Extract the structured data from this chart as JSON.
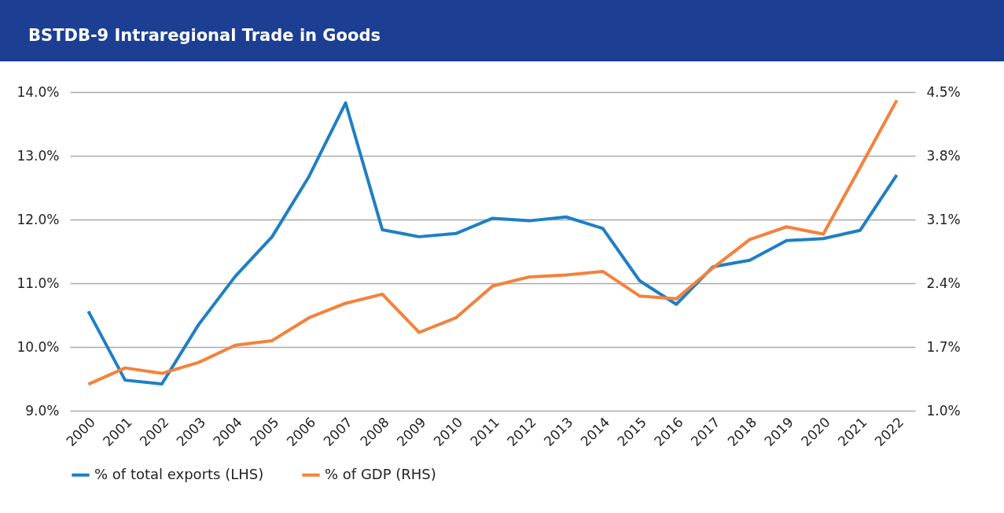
{
  "chart_data": {
    "type": "line",
    "title": "BSTDB-9 Intraregional Trade in Goods",
    "categories": [
      "2000",
      "2001",
      "2002",
      "2003",
      "2004",
      "2005",
      "2006",
      "2007",
      "2008",
      "2009",
      "2010",
      "2011",
      "2012",
      "2013",
      "2014",
      "2015",
      "2016",
      "2017",
      "2018",
      "2019",
      "2020",
      "2021",
      "2022"
    ],
    "series": [
      {
        "name": "% of total exports (LHS)",
        "color": "#1f7fc4",
        "values": [
          10.56,
          9.48,
          9.42,
          10.35,
          11.11,
          11.73,
          12.67,
          13.83,
          11.84,
          11.73,
          11.78,
          12.02,
          11.98,
          12.04,
          11.86,
          11.04,
          10.67,
          11.26,
          11.36,
          11.67,
          11.7,
          11.83,
          12.7
        ]
      },
      {
        "name": "% of GDP (RHS)",
        "color": "#f5813b",
        "axis": "y2",
        "values": [
          1.29,
          1.47,
          1.41,
          1.53,
          1.72,
          1.77,
          2.02,
          2.18,
          2.28,
          1.86,
          2.02,
          2.37,
          2.47,
          2.49,
          2.53,
          2.26,
          2.23,
          2.57,
          2.88,
          3.02,
          2.94,
          3.67,
          4.41
        ]
      }
    ],
    "ylim": [
      9,
      14
    ],
    "yticks": [
      {
        "value": 9,
        "label": "9.0%"
      },
      {
        "value": 10,
        "label": "10.0%"
      },
      {
        "value": 11,
        "label": "11.0%"
      },
      {
        "value": 12,
        "label": "12.0%"
      },
      {
        "value": 13,
        "label": "13.0%"
      },
      {
        "value": 14,
        "label": "14.0%"
      }
    ],
    "y2lim": [
      1,
      4.5
    ],
    "y2ticks": [
      {
        "value": 1,
        "label": "1.0%"
      },
      {
        "value": 1.7,
        "label": "1.7%"
      },
      {
        "value": 2.4,
        "label": "2.4%"
      },
      {
        "value": 3.1,
        "label": "3.1%"
      },
      {
        "value": 3.8,
        "label": "3.8%"
      },
      {
        "value": 4.5,
        "label": "4.5%"
      }
    ],
    "grid": "y",
    "legend": "bottom"
  }
}
